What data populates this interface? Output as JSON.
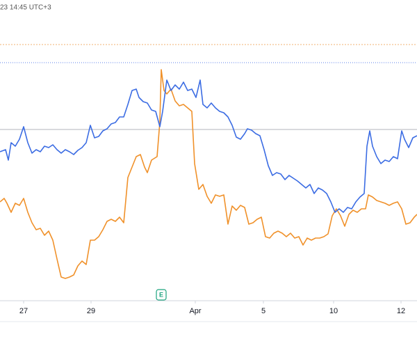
{
  "chart_data": {
    "type": "line",
    "header": "23 14:45 UTC+3",
    "event_marker": "E",
    "xlim": [
      0,
      600
    ],
    "xticks": [
      {
        "value": 34,
        "label": "27"
      },
      {
        "value": 131,
        "label": "29"
      },
      {
        "value": 281,
        "label": "Apr"
      },
      {
        "value": 379,
        "label": "5"
      },
      {
        "value": 480,
        "label": "10"
      },
      {
        "value": 577,
        "label": "12"
      }
    ],
    "ylim": [
      0,
      432
    ],
    "series": [
      {
        "color": "#3b6ce3",
        "x": [
          0,
          8,
          12,
          16,
          22,
          28,
          34,
          40,
          46,
          52,
          58,
          64,
          70,
          76,
          82,
          88,
          94,
          100,
          106,
          112,
          118,
          124,
          130,
          136,
          142,
          148,
          154,
          160,
          166,
          172,
          178,
          184,
          190,
          196,
          200,
          206,
          212,
          218,
          224,
          230,
          234,
          240,
          246,
          252,
          258,
          264,
          270,
          276,
          282,
          288,
          292,
          298,
          304,
          310,
          316,
          322,
          328,
          334,
          340,
          346,
          352,
          356,
          362,
          368,
          374,
          380,
          386,
          392,
          398,
          404,
          410,
          416,
          422,
          428,
          434,
          440,
          446,
          452,
          458,
          464,
          470,
          476,
          482,
          488,
          494,
          500,
          506,
          512,
          518,
          524,
          528,
          532,
          536,
          542,
          548,
          554,
          560,
          566,
          572,
          578,
          582,
          588,
          594,
          600
        ],
        "values": [
          214,
          217,
          202,
          227,
          222,
          232,
          250,
          227,
          212,
          217,
          214,
          222,
          220,
          224,
          217,
          212,
          217,
          214,
          210,
          216,
          220,
          227,
          252,
          234,
          236,
          244,
          247,
          254,
          256,
          264,
          264,
          282,
          302,
          304,
          292,
          286,
          284,
          274,
          272,
          250,
          272,
          317,
          302,
          310,
          304,
          314,
          302,
          304,
          292,
          317,
          282,
          277,
          284,
          277,
          272,
          270,
          264,
          252,
          235,
          232,
          240,
          247,
          245,
          240,
          237,
          217,
          194,
          180,
          184,
          182,
          174,
          180,
          176,
          172,
          167,
          162,
          167,
          154,
          162,
          159,
          154,
          142,
          127,
          132,
          127,
          134,
          132,
          142,
          149,
          154,
          222,
          244,
          222,
          207,
          197,
          202,
          200,
          207,
          204,
          244,
          232,
          220,
          234,
          237
        ]
      },
      {
        "color": "#f0912a",
        "x": [
          0,
          6,
          10,
          16,
          22,
          28,
          34,
          40,
          46,
          52,
          58,
          64,
          70,
          76,
          82,
          88,
          94,
          100,
          106,
          112,
          118,
          124,
          130,
          136,
          142,
          148,
          154,
          160,
          166,
          172,
          178,
          184,
          190,
          196,
          202,
          208,
          212,
          218,
          226,
          230,
          232,
          236,
          240,
          246,
          252,
          258,
          264,
          270,
          276,
          280,
          286,
          292,
          298,
          304,
          310,
          316,
          322,
          328,
          334,
          340,
          346,
          352,
          358,
          364,
          370,
          376,
          382,
          388,
          394,
          400,
          406,
          412,
          418,
          424,
          430,
          436,
          442,
          448,
          454,
          460,
          466,
          472,
          478,
          484,
          490,
          496,
          502,
          508,
          514,
          520,
          526,
          530,
          536,
          542,
          548,
          554,
          560,
          566,
          572,
          578,
          584,
          590,
          596,
          600
        ],
        "values": [
          142,
          147,
          140,
          127,
          140,
          137,
          147,
          127,
          112,
          102,
          104,
          94,
          100,
          87,
          60,
          34,
          32,
          34,
          37,
          50,
          57,
          52,
          87,
          87,
          92,
          102,
          114,
          117,
          114,
          120,
          112,
          177,
          192,
          207,
          210,
          192,
          184,
          202,
          207,
          257,
          332,
          302,
          297,
          304,
          287,
          280,
          282,
          277,
          272,
          197,
          160,
          167,
          150,
          140,
          152,
          150,
          152,
          110,
          136,
          130,
          137,
          134,
          110,
          112,
          117,
          120,
          92,
          90,
          97,
          100,
          97,
          92,
          97,
          90,
          92,
          80,
          90,
          87,
          90,
          90,
          92,
          96,
          122,
          132,
          122,
          107,
          124,
          130,
          127,
          132,
          132,
          152,
          149,
          144,
          142,
          140,
          137,
          140,
          142,
          132,
          110,
          112,
          120,
          124
        ]
      }
    ]
  }
}
